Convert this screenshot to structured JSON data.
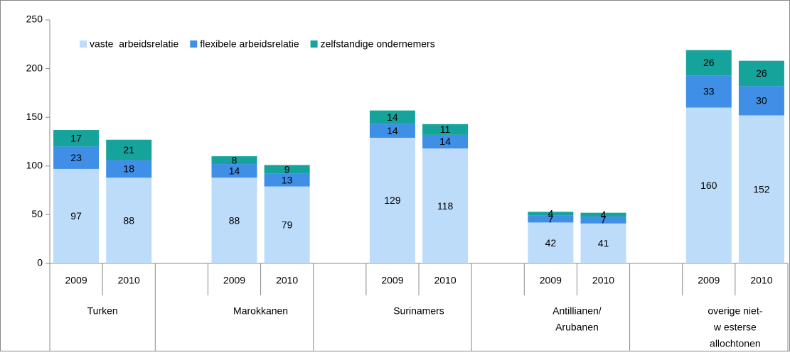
{
  "chart_data": {
    "type": "stacked_bar",
    "categories": [
      "2009",
      "2010",
      null,
      "2009",
      "2010",
      null,
      "2009",
      "2010",
      null,
      "2009",
      "2010",
      null,
      "2009",
      "2010"
    ],
    "groups": [
      [
        "Turken"
      ],
      [
        "Marokkanen"
      ],
      [
        "Surinamers"
      ],
      [
        "Antillianen/",
        "Arubanen"
      ],
      [
        "overige niet-",
        "w esterse",
        "allochtonen"
      ]
    ],
    "series": [
      {
        "name": "vaste  arbeidsrelatie",
        "color": "#bddcf9",
        "values": [
          97,
          88,
          null,
          88,
          79,
          null,
          129,
          118,
          null,
          42,
          41,
          null,
          160,
          152
        ]
      },
      {
        "name": "flexibele arbeidsrelatie",
        "color": "#3f8fe6",
        "values": [
          23,
          18,
          null,
          14,
          13,
          null,
          14,
          14,
          null,
          7,
          7,
          null,
          33,
          30
        ]
      },
      {
        "name": "zelfstandige ondernemers",
        "color": "#16a39c",
        "values": [
          17,
          21,
          null,
          8,
          9,
          null,
          14,
          11,
          null,
          4,
          4,
          null,
          26,
          26
        ]
      }
    ],
    "ylim": [
      0,
      250
    ],
    "yticks": [
      0,
      50,
      100,
      150,
      200,
      250
    ],
    "legend": "top-left"
  }
}
